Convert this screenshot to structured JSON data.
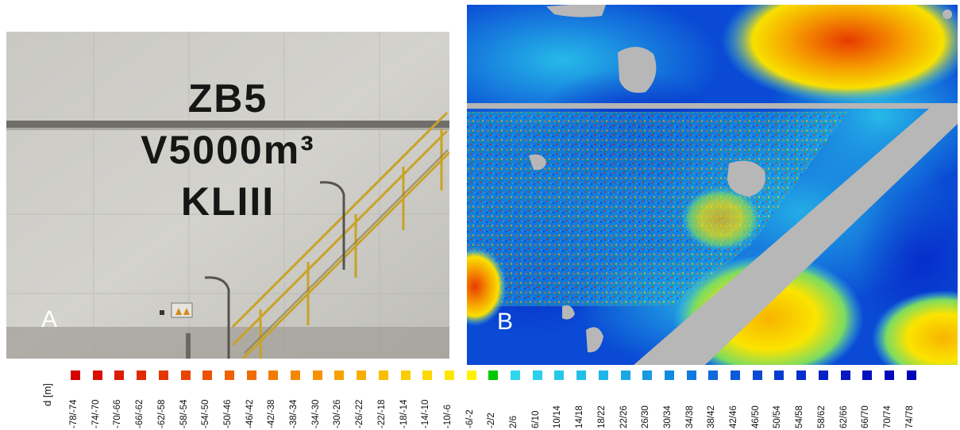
{
  "panel_a": {
    "label": "A",
    "tank_lines": [
      "ZB5",
      "V5000m³",
      "KLIII"
    ]
  },
  "panel_b": {
    "label": "B"
  },
  "legend": {
    "title": "d [m]",
    "items": [
      {
        "label": "-78/-74",
        "color": "#d40000"
      },
      {
        "label": "-74/-70",
        "color": "#d80e00"
      },
      {
        "label": "-70/-66",
        "color": "#dc1c00"
      },
      {
        "label": "-66/-62",
        "color": "#e02a00"
      },
      {
        "label": "-62/-58",
        "color": "#e43600"
      },
      {
        "label": "-58/-54",
        "color": "#e84400"
      },
      {
        "label": "-54/-50",
        "color": "#ec5200"
      },
      {
        "label": "-50/-46",
        "color": "#ef6000"
      },
      {
        "label": "-46/-42",
        "color": "#f06c00"
      },
      {
        "label": "-42/-38",
        "color": "#f27a00"
      },
      {
        "label": "-38/-34",
        "color": "#f48800"
      },
      {
        "label": "-34/-30",
        "color": "#f59400"
      },
      {
        "label": "-30/-26",
        "color": "#f6a200"
      },
      {
        "label": "-26/-22",
        "color": "#f8b000"
      },
      {
        "label": "-22/-18",
        "color": "#f9be00"
      },
      {
        "label": "-18/-14",
        "color": "#facc00"
      },
      {
        "label": "-14/-10",
        "color": "#fcd800"
      },
      {
        "label": "-10/-6",
        "color": "#fde600"
      },
      {
        "label": "-6/-2",
        "color": "#fef200"
      },
      {
        "label": "-2/2",
        "color": "#00c800"
      },
      {
        "label": "2/6",
        "color": "#2ed6ee"
      },
      {
        "label": "6/10",
        "color": "#2ad0ec"
      },
      {
        "label": "10/14",
        "color": "#26c8ea"
      },
      {
        "label": "14/18",
        "color": "#22c0e8"
      },
      {
        "label": "18/22",
        "color": "#1eb6e6"
      },
      {
        "label": "22/26",
        "color": "#1aa8e4"
      },
      {
        "label": "26/30",
        "color": "#169ae2"
      },
      {
        "label": "30/34",
        "color": "#128ae0"
      },
      {
        "label": "34/38",
        "color": "#107ade"
      },
      {
        "label": "38/42",
        "color": "#0e6adc"
      },
      {
        "label": "42/46",
        "color": "#0c5ad8"
      },
      {
        "label": "46/50",
        "color": "#0a4ad4"
      },
      {
        "label": "50/54",
        "color": "#083cd0"
      },
      {
        "label": "54/58",
        "color": "#062ecc"
      },
      {
        "label": "58/62",
        "color": "#0522c8"
      },
      {
        "label": "62/66",
        "color": "#0418c4"
      },
      {
        "label": "66/70",
        "color": "#0310c0"
      },
      {
        "label": "70/74",
        "color": "#0208bc"
      },
      {
        "label": "74/78",
        "color": "#0000b8"
      }
    ]
  }
}
